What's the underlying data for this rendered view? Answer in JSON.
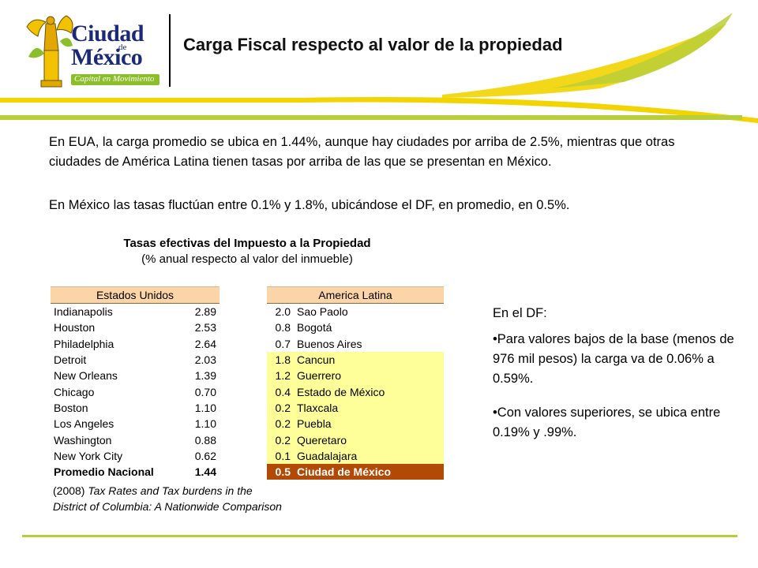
{
  "header": {
    "title": "Carga Fiscal respecto al valor de la propiedad",
    "logo": {
      "line1": "Ciudad",
      "de": "de",
      "line2": "México",
      "tagline": "Capital en Movimiento"
    }
  },
  "body": {
    "para1": "En EUA, la carga promedio se ubica en 1.44%, aunque hay ciudades por arriba de 2.5%, mientras que otras ciudades de América Latina tienen tasas por arriba de las que se presentan en México.",
    "para2": "En México las tasas fluctúan entre 0.1% y 1.8%, ubicándose el DF, en promedio, en 0.5%."
  },
  "table": {
    "title": "Tasas efectivas del Impuesto a la Propiedad",
    "subtitle": "(% anual respecto al valor del inmueble)",
    "us": {
      "header": "Estados Unidos",
      "rows": [
        {
          "city": "Indianapolis",
          "value": "2.89"
        },
        {
          "city": "Houston",
          "value": "2.53"
        },
        {
          "city": "Philadelphia",
          "value": "2.64"
        },
        {
          "city": "Detroit",
          "value": "2.03"
        },
        {
          "city": "New Orleans",
          "value": "1.39"
        },
        {
          "city": "Chicago",
          "value": "0.70"
        },
        {
          "city": "Boston",
          "value": "1.10"
        },
        {
          "city": "Los Angeles",
          "value": "1.10"
        },
        {
          "city": "Washington",
          "value": "0.88"
        },
        {
          "city": "New York City",
          "value": "0.62"
        }
      ],
      "total": {
        "city": "Promedio Nacional",
        "value": "1.44"
      }
    },
    "la": {
      "header": "America Latina",
      "rows": [
        {
          "value": "2.0",
          "city": "Sao Paolo"
        },
        {
          "value": "0.8",
          "city": "Bogotá"
        },
        {
          "value": "0.7",
          "city": "Buenos Aires"
        },
        {
          "value": "1.8",
          "city": "Cancun"
        },
        {
          "value": "1.2",
          "city": "Guerrero"
        },
        {
          "value": "0.4",
          "city": "Estado de México"
        },
        {
          "value": "0.2",
          "city": "Tlaxcala"
        },
        {
          "value": "0.2",
          "city": "Puebla"
        },
        {
          "value": "0.2",
          "city": "Queretaro"
        },
        {
          "value": "0.1",
          "city": "Guadalajara"
        }
      ],
      "total": {
        "value": "0.5",
        "city": "Ciudad de México"
      }
    },
    "citation": {
      "year": "(2008)",
      "title_line1": "Tax Rates and Tax burdens in the",
      "title_line2": "District of Columbia: A Nationwide Comparison"
    }
  },
  "df_panel": {
    "heading": "En el DF:",
    "bullet1": "•Para valores bajos de la base (menos de 976 mil pesos) la carga va de 0.06% a 0.59%.",
    "bullet2": "•Con valores superiores, se ubica entre 0.19% y .99%."
  },
  "colors": {
    "accent_green": "#b8cf3a",
    "accent_yellow": "#f2d400",
    "header_peach": "#fbd5a8",
    "highlight_yellow": "#ffff99",
    "highlight_brown": "#b24a06"
  }
}
